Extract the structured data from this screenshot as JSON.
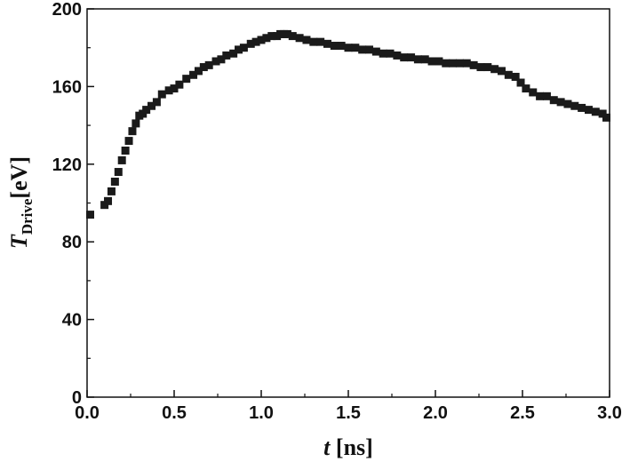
{
  "chart_data": {
    "type": "scatter",
    "xlabel": {
      "symbol": "t",
      "unit": " [ns]"
    },
    "ylabel": {
      "symbol": "T",
      "subscript": "Drive",
      "unit": "[eV]"
    },
    "xlim": [
      0,
      3.0
    ],
    "ylim": [
      0,
      200
    ],
    "grid": false,
    "xticks": [
      {
        "value": 0.0,
        "label": "0.0"
      },
      {
        "value": 0.5,
        "label": "0.5"
      },
      {
        "value": 1.0,
        "label": "1.0"
      },
      {
        "value": 1.5,
        "label": "1.5"
      },
      {
        "value": 2.0,
        "label": "2.0"
      },
      {
        "value": 2.5,
        "label": "2.5"
      },
      {
        "value": 3.0,
        "label": "3.0"
      }
    ],
    "yticks": [
      {
        "value": 0,
        "label": "0"
      },
      {
        "value": 40,
        "label": "40"
      },
      {
        "value": 80,
        "label": "80"
      },
      {
        "value": 120,
        "label": "120"
      },
      {
        "value": 160,
        "label": "160"
      },
      {
        "value": 200,
        "label": "200"
      }
    ],
    "marker": {
      "shape": "square",
      "color": "#1a1a1a"
    },
    "series": [
      {
        "x": [
          0.0,
          0.1,
          0.12,
          0.14,
          0.16,
          0.18,
          0.2,
          0.22,
          0.24,
          0.26,
          0.28,
          0.3,
          0.32,
          0.34,
          0.37,
          0.4,
          0.43,
          0.47,
          0.5,
          0.53,
          0.57,
          0.61,
          0.64,
          0.67,
          0.7,
          0.74,
          0.77,
          0.8,
          0.84,
          0.87,
          0.9,
          0.94,
          0.97,
          1.0,
          1.03,
          1.06,
          1.09,
          1.11,
          1.13,
          1.15,
          1.18,
          1.22,
          1.26,
          1.3,
          1.34,
          1.38,
          1.42,
          1.46,
          1.5,
          1.54,
          1.58,
          1.62,
          1.66,
          1.7,
          1.74,
          1.78,
          1.82,
          1.86,
          1.9,
          1.94,
          1.98,
          2.02,
          2.06,
          2.1,
          2.14,
          2.18,
          2.22,
          2.26,
          2.3,
          2.34,
          2.38,
          2.42,
          2.46,
          2.49,
          2.52,
          2.56,
          2.6,
          2.64,
          2.68,
          2.72,
          2.76,
          2.8,
          2.84,
          2.88,
          2.92,
          2.96,
          3.0
        ],
        "y": [
          94,
          99,
          101,
          106,
          111,
          116,
          122,
          127,
          132,
          137,
          141,
          145,
          146,
          148,
          150,
          152,
          156,
          158,
          159,
          161,
          164,
          166,
          168,
          170,
          171,
          173,
          174,
          176,
          177,
          179,
          180,
          182,
          183,
          184,
          185,
          186,
          186,
          187,
          187,
          187,
          186,
          185,
          184,
          183,
          183,
          182,
          181,
          181,
          180,
          180,
          179,
          179,
          178,
          177,
          177,
          176,
          175,
          175,
          174,
          174,
          173,
          173,
          172,
          172,
          172,
          172,
          171,
          170,
          170,
          169,
          168,
          166,
          165,
          162,
          159,
          157,
          155,
          155,
          153,
          152,
          151,
          150,
          149,
          148,
          147,
          146,
          144
        ]
      }
    ]
  }
}
